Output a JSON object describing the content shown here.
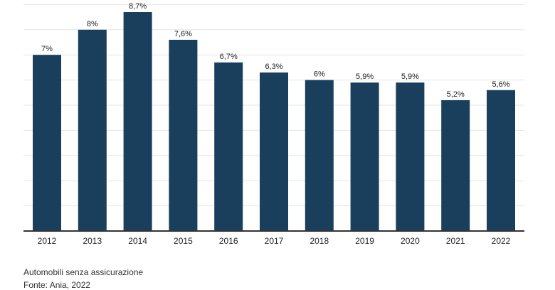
{
  "chart_data": {
    "type": "bar",
    "categories": [
      "2012",
      "2013",
      "2014",
      "2015",
      "2016",
      "2017",
      "2018",
      "2019",
      "2020",
      "2021",
      "2022"
    ],
    "values": [
      7,
      8,
      8.7,
      7.6,
      6.7,
      6.3,
      6,
      5.9,
      5.9,
      5.2,
      5.6
    ],
    "data_labels": [
      "7%",
      "8%",
      "8,7%",
      "7,6%",
      "6,7%",
      "6,3%",
      "6%",
      "5,9%",
      "5,9%",
      "5,2%",
      "5,6%"
    ],
    "ylim": [
      0,
      9
    ],
    "grid": true,
    "bar_color": "#1a3f5c"
  },
  "captions": {
    "line1": "Automobili senza assicurazione",
    "line2": "Fonte: Ania, 2022"
  }
}
